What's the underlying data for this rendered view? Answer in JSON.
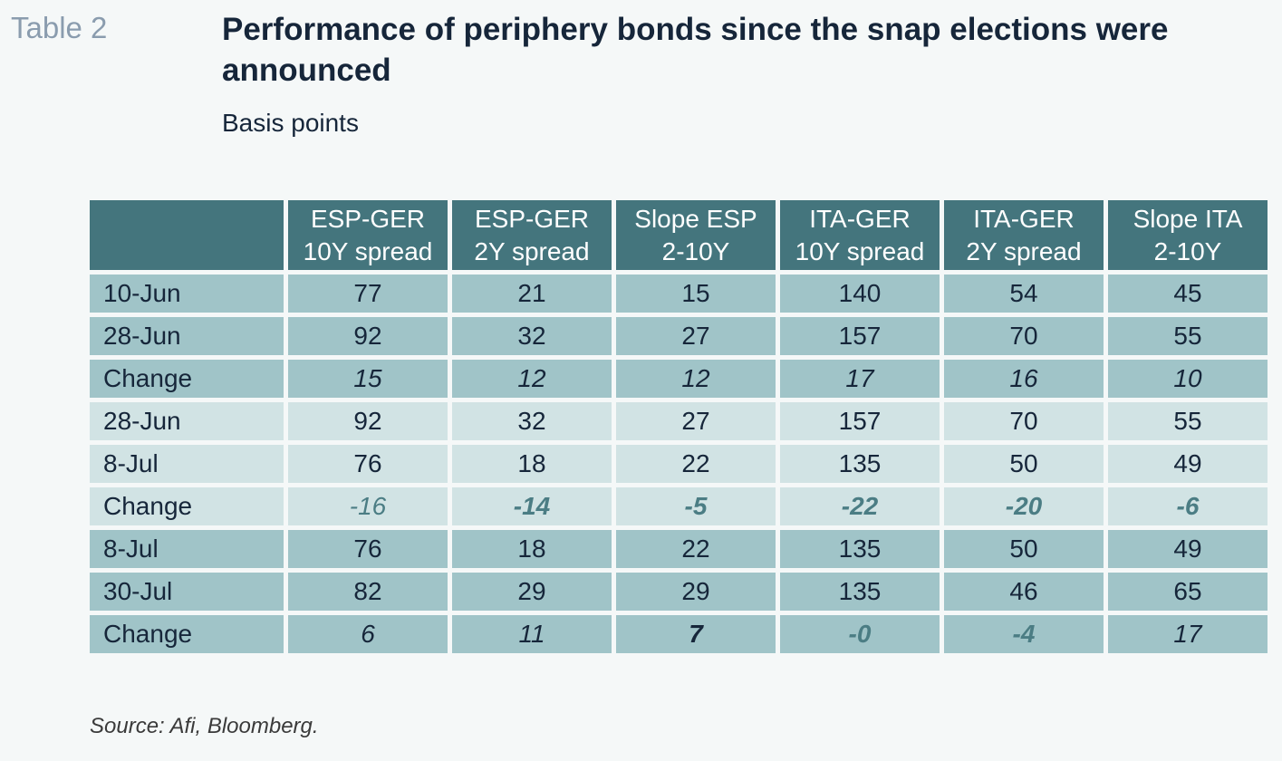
{
  "table_label": "Table 2",
  "title": "Performance of periphery bonds since the snap elections were announced",
  "subtitle": "Basis points",
  "columns": [
    {
      "line1": "ESP-GER",
      "line2": "10Y spread"
    },
    {
      "line1": "ESP-GER",
      "line2": "2Y spread"
    },
    {
      "line1": "Slope ESP",
      "line2": "2-10Y"
    },
    {
      "line1": "ITA-GER",
      "line2": "10Y spread"
    },
    {
      "line1": "ITA-GER",
      "line2": "2Y spread"
    },
    {
      "line1": "Slope ITA",
      "line2": "2-10Y"
    }
  ],
  "rows": [
    {
      "label": "10-Jun",
      "values": [
        "77",
        "21",
        "15",
        "140",
        "54",
        "45"
      ]
    },
    {
      "label": "28-Jun",
      "values": [
        "92",
        "32",
        "27",
        "157",
        "70",
        "55"
      ]
    },
    {
      "label": "Change",
      "values": [
        "15",
        "12",
        "12",
        "17",
        "16",
        "10"
      ]
    },
    {
      "label": "28-Jun",
      "values": [
        "92",
        "32",
        "27",
        "157",
        "70",
        "55"
      ]
    },
    {
      "label": "8-Jul",
      "values": [
        "76",
        "18",
        "22",
        "135",
        "50",
        "49"
      ]
    },
    {
      "label": "Change",
      "values": [
        "-16",
        "-14",
        "-5",
        "-22",
        "-20",
        "-6"
      ]
    },
    {
      "label": "8-Jul",
      "values": [
        "76",
        "18",
        "22",
        "135",
        "50",
        "49"
      ]
    },
    {
      "label": "30-Jul",
      "values": [
        "82",
        "29",
        "29",
        "135",
        "46",
        "65"
      ]
    },
    {
      "label": "Change",
      "values": [
        "6",
        "11",
        "7",
        "-0",
        "-4",
        "17"
      ]
    }
  ],
  "colors": {
    "header_bg": "#44757d",
    "row_dark": "#a0c4c8",
    "row_light": "#d1e3e4",
    "negative_text": "#4b7d84"
  },
  "source": "Source: Afi, Bloomberg."
}
